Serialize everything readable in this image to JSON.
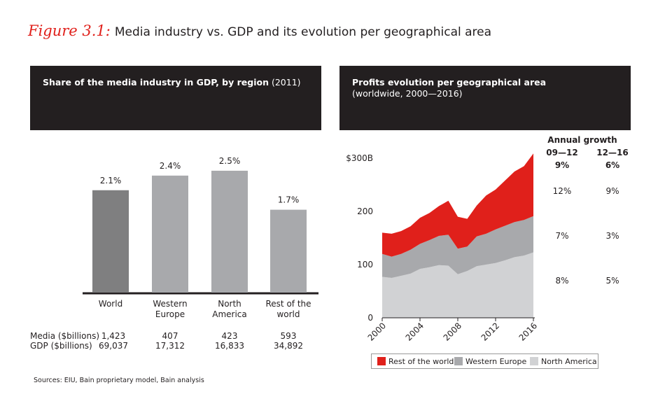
{
  "figure": {
    "label": "Figure 3.1:",
    "title": "Media industry vs. GDP and its evolution per geographical area"
  },
  "left_panel": {
    "title_bold": "Share of the media industry in GDP, by region",
    "title_rest": " (2011)"
  },
  "right_panel": {
    "title_bold": "Profits evolution per geographical area",
    "subtitle": "(worldwide, 2000—2016)"
  },
  "table": {
    "rows": [
      {
        "label": "Media ($billions)",
        "values": [
          "1,423",
          "407",
          "423",
          "593"
        ]
      },
      {
        "label": "GDP ($billions)",
        "values": [
          "69,037",
          "17,312",
          "16,833",
          "34,892"
        ]
      }
    ]
  },
  "growth": {
    "header": "Annual growth",
    "columns": [
      {
        "period": "09—12",
        "total": "9%",
        "values": [
          "12%",
          "7%",
          "8%"
        ]
      },
      {
        "period": "12—16",
        "total": "6%",
        "values": [
          "9%",
          "3%",
          "5%"
        ]
      }
    ]
  },
  "source": "Sources: EIU, Bain proprietary model, Bain analysis",
  "chart_data": [
    {
      "type": "bar",
      "title": "Share of the media industry in GDP, by region (2011)",
      "categories": [
        [
          "World"
        ],
        [
          "Western",
          "Europe"
        ],
        [
          "North",
          "America"
        ],
        [
          "Rest of the",
          "world"
        ]
      ],
      "values": [
        2.1,
        2.4,
        2.5,
        1.7
      ],
      "labels": [
        "2.1%",
        "2.4%",
        "2.5%",
        "1.7%"
      ],
      "colors": [
        "#7f7f80",
        "#a8a9ac",
        "#a8a9ac",
        "#a8a9ac"
      ],
      "ylim": [
        0,
        2.8
      ]
    },
    {
      "type": "area",
      "stacked": true,
      "title": "Profits evolution per geographical area",
      "x": [
        2000,
        2001,
        2002,
        2003,
        2004,
        2005,
        2006,
        2007,
        2008,
        2009,
        2010,
        2011,
        2012,
        2013,
        2014,
        2015,
        2016
      ],
      "x_tick_labels": [
        "2000",
        "2004",
        "2008",
        "2012",
        "2016"
      ],
      "y_tick_labels": [
        "0",
        "100",
        "200",
        "$300B"
      ],
      "ylim": [
        0,
        300
      ],
      "series": [
        {
          "name": "North America",
          "color": "#d1d2d4",
          "values": [
            77,
            75,
            79,
            83,
            92,
            95,
            99,
            98,
            82,
            88,
            97,
            100,
            103,
            108,
            114,
            117,
            123
          ]
        },
        {
          "name": "Western Europe",
          "color": "#a8a9ac",
          "values": [
            43,
            40,
            41,
            45,
            47,
            51,
            55,
            58,
            48,
            46,
            56,
            58,
            63,
            65,
            66,
            67,
            68
          ]
        },
        {
          "name": "Rest of the world",
          "color": "#e0201b",
          "values": [
            40,
            43,
            43,
            44,
            49,
            51,
            56,
            64,
            60,
            52,
            58,
            72,
            75,
            85,
            95,
            101,
            118
          ]
        }
      ],
      "legend_position": "bottom"
    }
  ]
}
